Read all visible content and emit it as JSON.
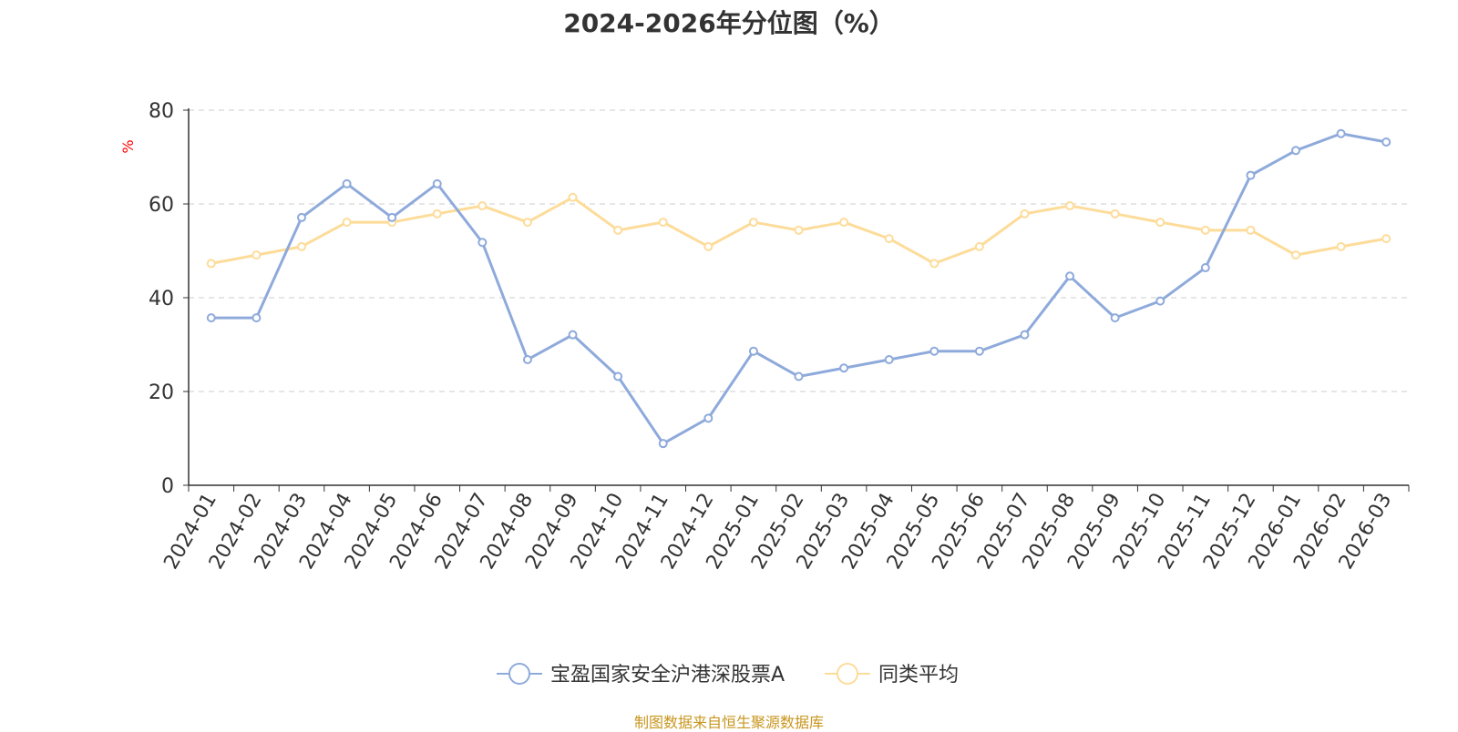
{
  "chart_data": {
    "type": "line",
    "title": "2024-2026年分位图（%）",
    "ylabel": "%",
    "ylim": [
      0,
      80
    ],
    "yticks": [
      0,
      20,
      40,
      60,
      80
    ],
    "grid": true,
    "legend_position": "bottom-center",
    "categories": [
      "2024-01",
      "2024-02",
      "2024-03",
      "2024-04",
      "2024-05",
      "2024-06",
      "2024-07",
      "2024-08",
      "2024-09",
      "2024-10",
      "2024-11",
      "2024-12",
      "2025-01",
      "2025-02",
      "2025-03",
      "2025-04",
      "2025-05",
      "2025-06",
      "2025-07",
      "2025-08",
      "2025-09",
      "2025-10",
      "2025-11",
      "2025-12",
      "2026-01",
      "2026-02",
      "2026-03"
    ],
    "series": [
      {
        "name": "宝盈国家安全沪港深股票A",
        "color": "#8eaadb",
        "values": [
          35.7,
          35.7,
          57.1,
          64.3,
          57.1,
          64.3,
          51.8,
          26.8,
          32.1,
          23.2,
          8.9,
          14.3,
          28.6,
          23.2,
          25.0,
          26.8,
          28.6,
          28.6,
          32.1,
          44.6,
          35.7,
          39.3,
          46.4,
          66.1,
          71.4,
          75.0,
          73.2
        ]
      },
      {
        "name": "同类平均",
        "color": "#fddc9a",
        "values": [
          47.3,
          49.1,
          50.9,
          56.1,
          56.1,
          57.9,
          59.6,
          56.1,
          61.4,
          54.4,
          56.1,
          50.9,
          56.1,
          54.4,
          56.1,
          52.6,
          47.3,
          50.9,
          57.9,
          59.6,
          57.9,
          56.1,
          54.4,
          54.4,
          49.1,
          50.9,
          52.6
        ]
      }
    ]
  },
  "footer": {
    "source": "制图数据来自恒生聚源数据库"
  }
}
